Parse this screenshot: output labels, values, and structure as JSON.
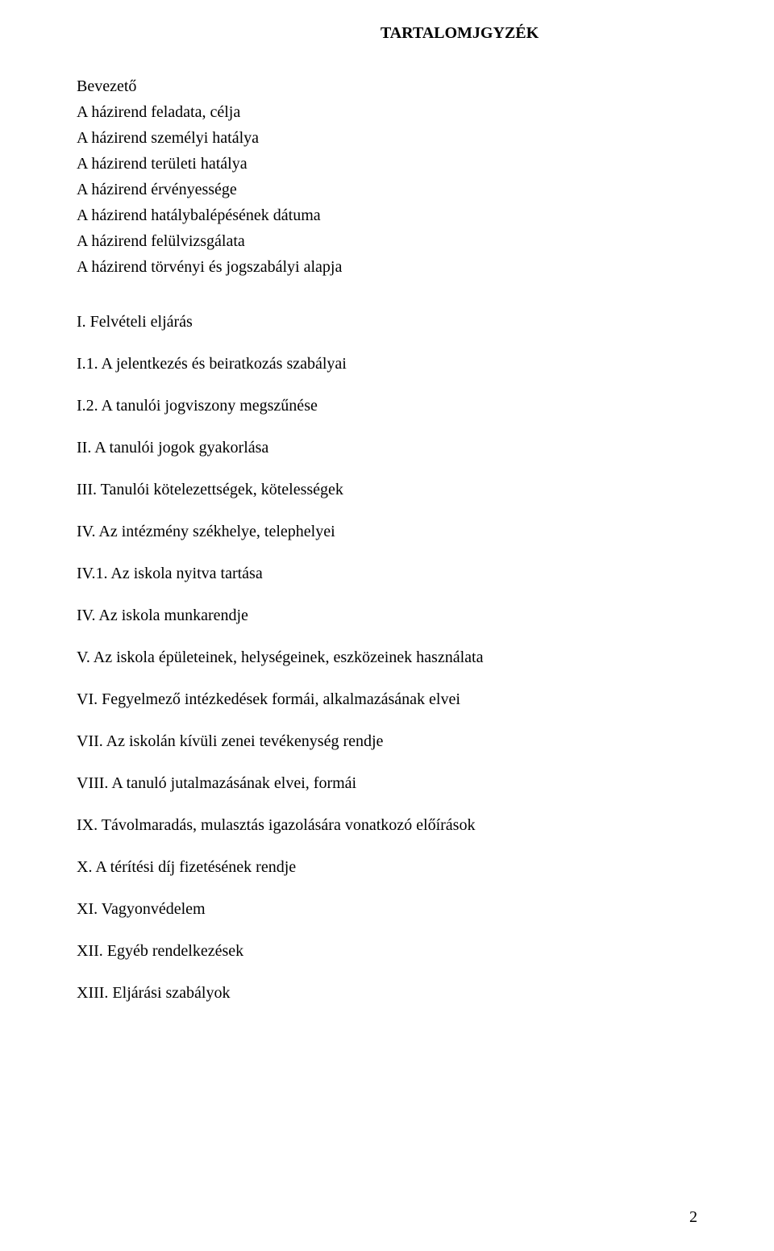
{
  "page": {
    "title": "TARTALOMJGYZÉK",
    "background_color": "#ffffff",
    "text_color": "#000000",
    "font_family": "Times New Roman",
    "font_size_pt": 15,
    "page_number": "2",
    "intro_lines": [
      "Bevezető",
      "A házirend feladata, célja",
      "A házirend személyi hatálya",
      "A házirend területi hatálya",
      "A házirend érvényessége",
      "A házirend hatálybalépésének dátuma",
      "A házirend felülvizsgálata",
      "A házirend törvényi és jogszabályi alapja"
    ],
    "toc_items": [
      "I. Felvételi eljárás",
      "I.1. A jelentkezés és beiratkozás szabályai",
      "I.2. A tanulói jogviszony megszűnése",
      "II. A tanulói jogok gyakorlása",
      "III. Tanulói kötelezettségek, kötelességek",
      "IV. Az intézmény székhelye, telephelyei",
      "IV.1. Az iskola nyitva tartása",
      "IV. Az iskola munkarendje",
      "V. Az iskola épületeinek, helységeinek, eszközeinek használata",
      "VI. Fegyelmező intézkedések formái, alkalmazásának elvei",
      "VII. Az iskolán kívüli zenei tevékenység rendje",
      "VIII. A tanuló jutalmazásának elvei, formái",
      "IX. Távolmaradás, mulasztás igazolására vonatkozó előírások",
      "X. A térítési díj fizetésének rendje",
      "XI. Vagyonvédelem",
      "XII. Egyéb rendelkezések",
      "XIII. Eljárási szabályok"
    ]
  }
}
